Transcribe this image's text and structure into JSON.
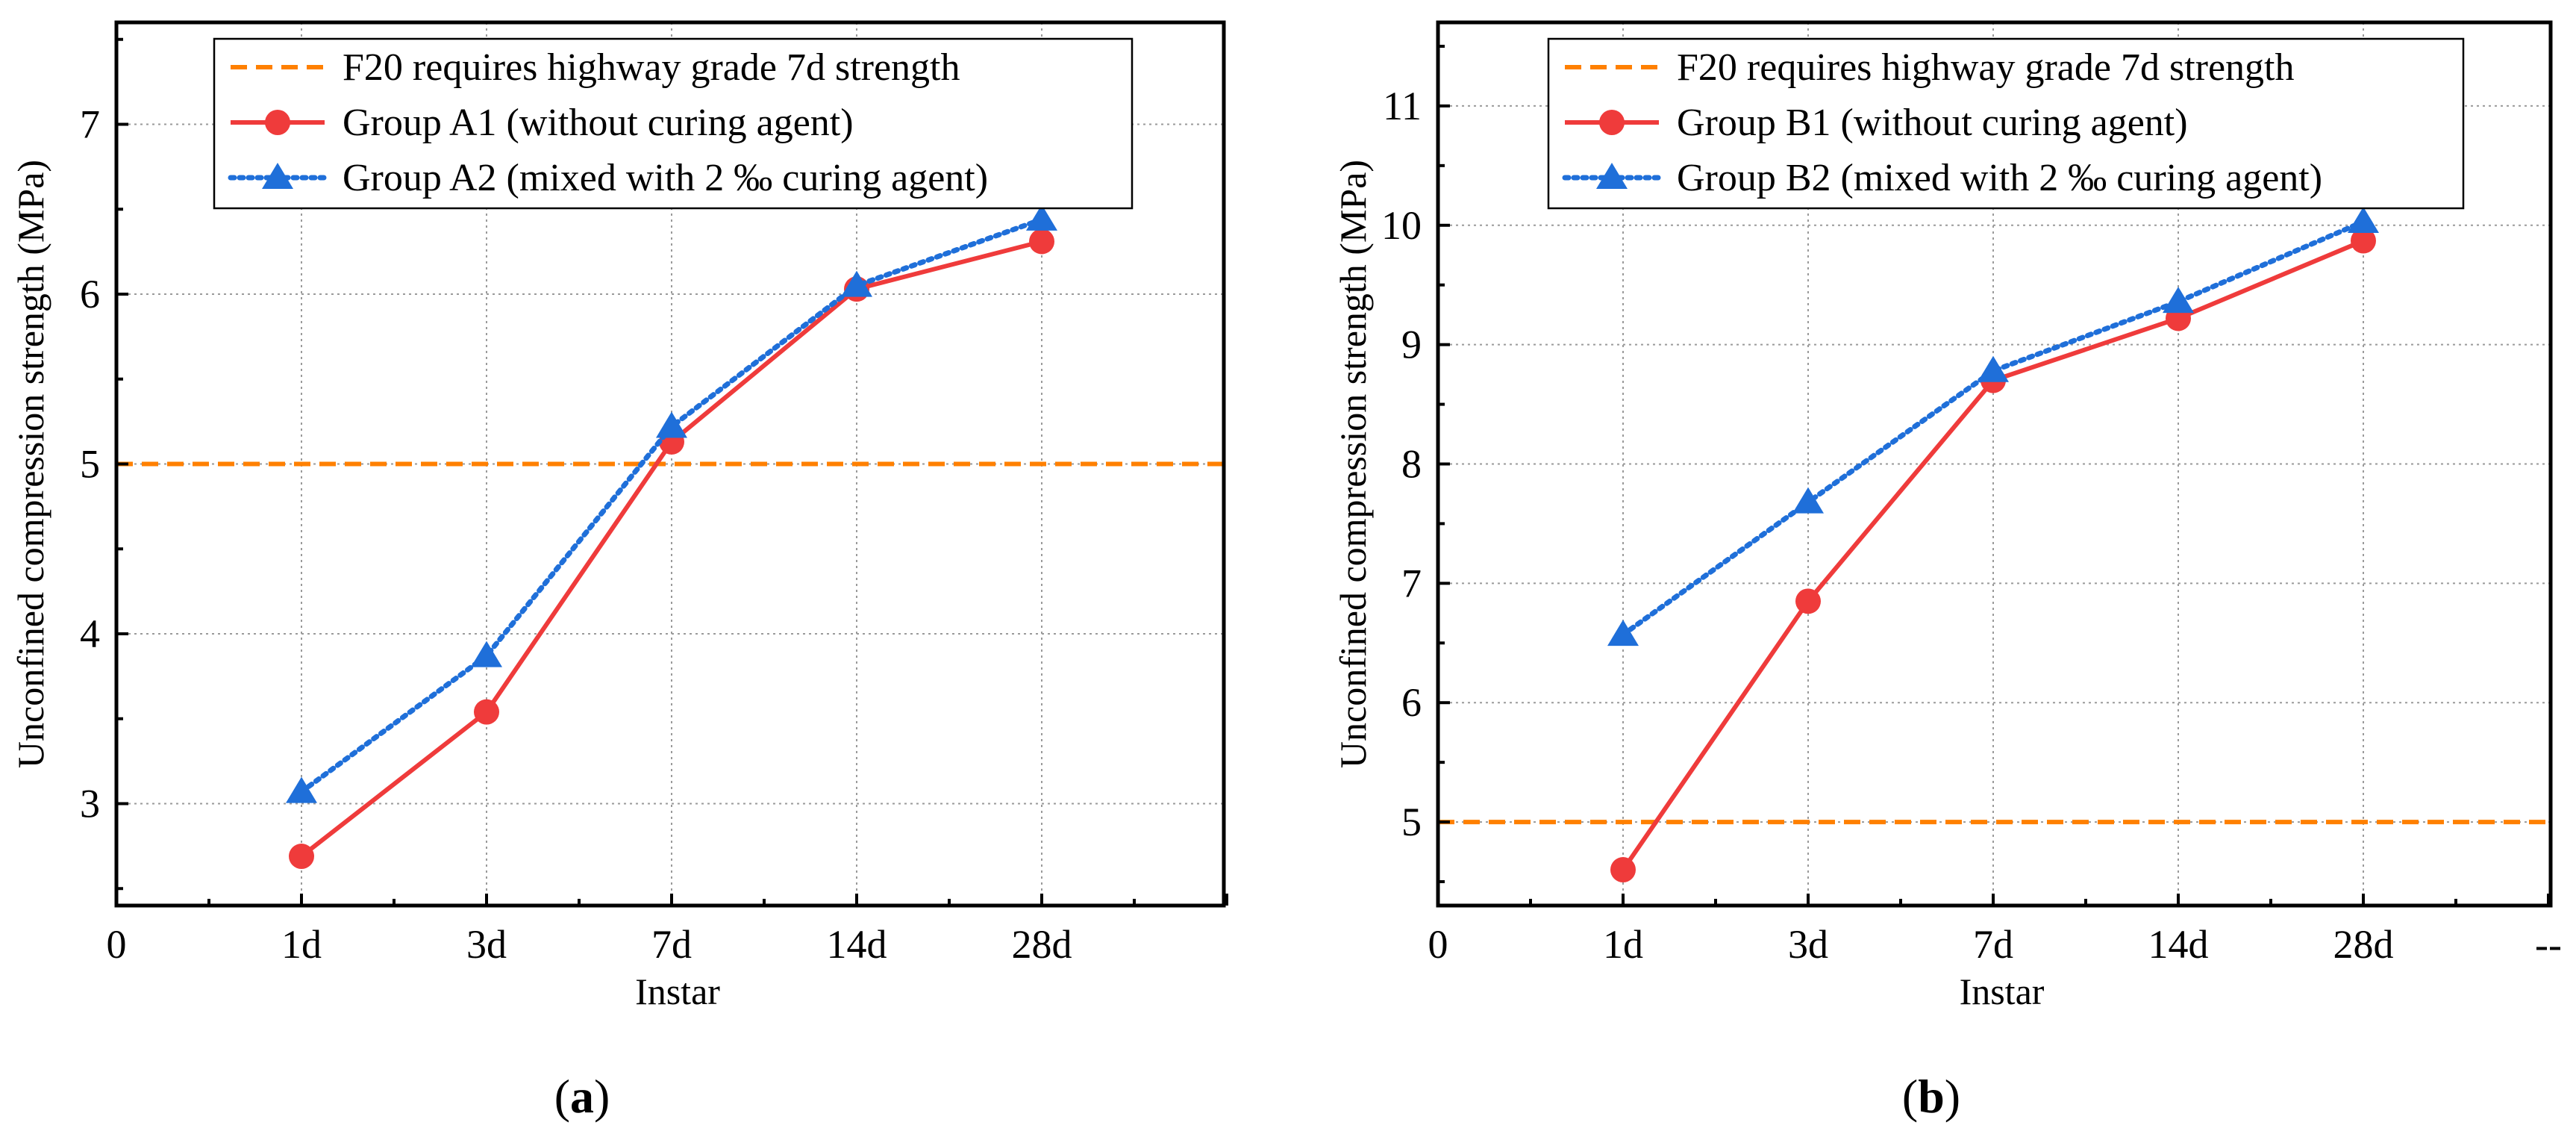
{
  "chart_data": [
    {
      "type": "line",
      "panel_label": "a",
      "xlabel": "Instar",
      "ylabel": "Unconfined compression strength (MPa)",
      "x_origin_label": "0",
      "categories": [
        "1d",
        "3d",
        "7d",
        "14d",
        "28d"
      ],
      "ylim": [
        2.4,
        7.6
      ],
      "yticks": [
        3,
        4,
        5,
        6,
        7
      ],
      "grid": true,
      "legend_position": "top-right",
      "reference_line": {
        "name": "F20 requires highway grade 7d strength",
        "y": 5,
        "color": "#ff8000"
      },
      "series": [
        {
          "name": "Group A1 (without curing agent)",
          "values": [
            2.69,
            3.54,
            5.13,
            6.03,
            6.31
          ],
          "color": "#ef3b3b",
          "marker": "circle",
          "style": "solid"
        },
        {
          "name": "Group A2 (mixed with 2 ‰ curing agent)",
          "values": [
            3.07,
            3.87,
            5.22,
            6.05,
            6.44
          ],
          "color": "#1f6fd9",
          "marker": "triangle",
          "style": "dotted"
        }
      ]
    },
    {
      "type": "line",
      "panel_label": "b",
      "xlabel": "Instar",
      "ylabel": "Unconfined compression strength (MPa)",
      "x_origin_label": "0",
      "categories": [
        "1d",
        "3d",
        "7d",
        "14d",
        "28d"
      ],
      "x_end_label": "--",
      "ylim": [
        4.3,
        11.7
      ],
      "yticks": [
        5,
        6,
        7,
        8,
        9,
        10,
        11
      ],
      "grid": true,
      "legend_position": "top-right",
      "reference_line": {
        "name": "F20 requires highway grade 7d strength",
        "y": 5,
        "color": "#ff8000"
      },
      "series": [
        {
          "name": "Group B1 (without curing agent)",
          "values": [
            4.6,
            6.85,
            8.7,
            9.22,
            9.87
          ],
          "color": "#ef3b3b",
          "marker": "circle",
          "style": "solid"
        },
        {
          "name": "Group B2 (mixed with 2 ‰ curing agent)",
          "values": [
            6.57,
            7.68,
            8.78,
            9.36,
            10.03
          ],
          "color": "#1f6fd9",
          "marker": "triangle",
          "style": "dotted"
        }
      ]
    }
  ]
}
